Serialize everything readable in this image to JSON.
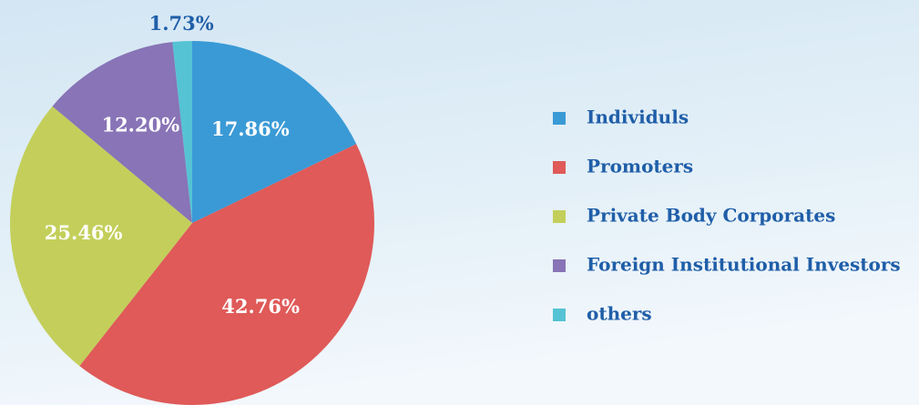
{
  "chart_data": {
    "type": "pie",
    "categories": [
      "Individuls",
      "Promoters",
      "Private Body Corporates",
      "Foreign Institutional Investors",
      "others"
    ],
    "values": [
      17.86,
      42.76,
      25.46,
      12.2,
      1.73
    ],
    "value_labels": [
      "17.86%",
      "42.76%",
      "25.46%",
      "12.20%",
      "1.73%"
    ],
    "colors": [
      "#3a9ad6",
      "#df5a58",
      "#c3cf5a",
      "#8874b6",
      "#55c3d3"
    ],
    "legend": "right"
  }
}
